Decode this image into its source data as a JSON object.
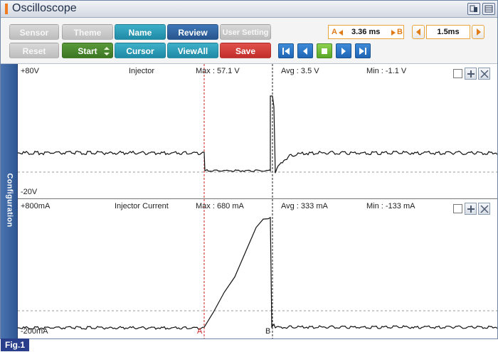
{
  "window": {
    "title": "Oscilloscope"
  },
  "toolbar": {
    "row1": [
      {
        "label": "Sensor",
        "style": "gray"
      },
      {
        "label": "Theme",
        "style": "gray"
      },
      {
        "label": "Name",
        "style": "teal"
      },
      {
        "label": "Review",
        "style": "blue"
      },
      {
        "label": "User Setting",
        "style": "gray"
      }
    ],
    "row2": [
      {
        "label": "Reset",
        "style": "gray"
      },
      {
        "label": "Start",
        "style": "green"
      },
      {
        "label": "Cursor",
        "style": "teal"
      },
      {
        "label": "ViewAll",
        "style": "teal"
      },
      {
        "label": "Save",
        "style": "red"
      }
    ],
    "cursor_a": "A",
    "cursor_b": "B",
    "cursor_delta": "3.36 ms",
    "time_div": "1.5ms"
  },
  "sidebar": {
    "label": "Configuration"
  },
  "channels": [
    {
      "top_scale": "+80V",
      "bottom_scale": "-20V",
      "name": "Injector",
      "max": "Max : 57.1 V",
      "avg": "Avg : 3.5 V",
      "min": "Min : -1.1 V",
      "trace_color": "#111111"
    },
    {
      "top_scale": "+800mA",
      "bottom_scale": "-200mA",
      "name": "Injector Current",
      "max": "Max : 680 mA",
      "avg": "Avg : 333 mA",
      "min": "Min : -133 mA",
      "cursor_a_label": "A",
      "cursor_b_label": "B",
      "trace_color": "#111111"
    }
  ],
  "colors": {
    "cursor_a": "#cc2222",
    "cursor_b": "#222222",
    "accent": "#f07c22"
  },
  "footer": {
    "figure_label": "Fig.1"
  }
}
